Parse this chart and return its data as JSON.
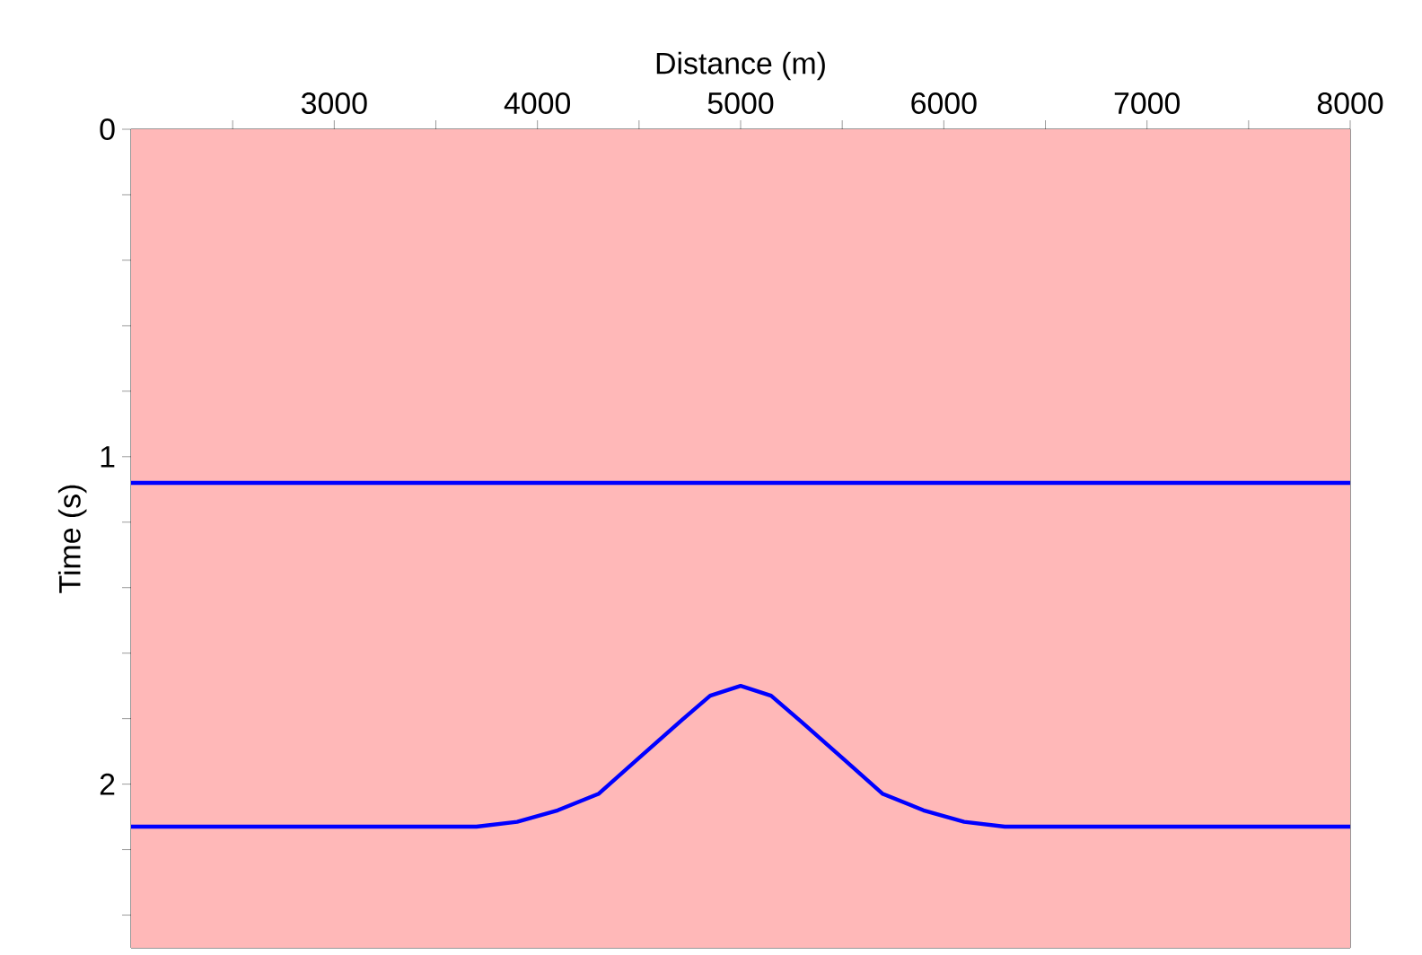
{
  "chart_data": {
    "type": "line",
    "xlabel": "Distance (m)",
    "ylabel": "Time (s)",
    "xlim": [
      2000,
      8000
    ],
    "ylim": [
      2.5,
      0
    ],
    "xticks": [
      {
        "value": 2500,
        "label": null
      },
      3000,
      {
        "value": 3500,
        "label": null
      },
      4000,
      {
        "value": 4500,
        "label": null
      },
      5000,
      {
        "value": 5500,
        "label": null
      },
      6000,
      {
        "value": 6500,
        "label": null
      },
      7000,
      {
        "value": 7500,
        "label": null
      },
      8000
    ],
    "yticks": [
      0,
      {
        "value": 0.2,
        "label": null
      },
      {
        "value": 0.4,
        "label": null
      },
      {
        "value": 0.6,
        "label": null
      },
      {
        "value": 0.8,
        "label": null
      },
      1,
      {
        "value": 1.2,
        "label": null
      },
      {
        "value": 1.4,
        "label": null
      },
      {
        "value": 1.6,
        "label": null
      },
      {
        "value": 1.8,
        "label": null
      },
      2,
      {
        "value": 2.2,
        "label": null
      },
      {
        "value": 2.4,
        "label": null
      }
    ],
    "bands": [
      {
        "axis": "y",
        "from": 0,
        "to": 2.5,
        "color": "#ffb8b8"
      }
    ],
    "series": [
      {
        "color": "#0000ff",
        "x": [
          2000,
          8000
        ],
        "values": [
          1.08,
          1.08
        ]
      },
      {
        "color": "#0000ff",
        "x": [
          2000,
          3500,
          3700,
          3900,
          4100,
          4300,
          4500,
          4700,
          4850,
          5000,
          5150,
          5300,
          5500,
          5700,
          5900,
          6100,
          6300,
          6500,
          8000
        ],
        "values": [
          2.13,
          2.13,
          2.13,
          2.115,
          2.08,
          2.03,
          1.92,
          1.81,
          1.73,
          1.7,
          1.73,
          1.81,
          1.92,
          2.03,
          2.08,
          2.115,
          2.13,
          2.13,
          2.13
        ]
      }
    ]
  }
}
